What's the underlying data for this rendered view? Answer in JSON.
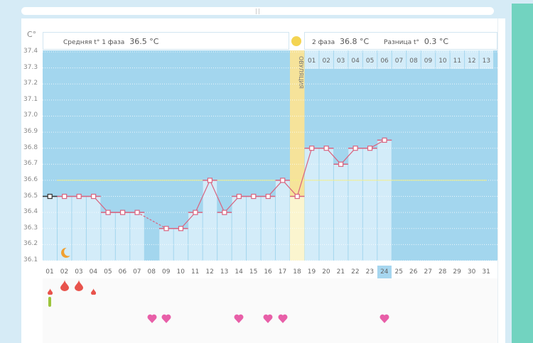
{
  "header": {
    "unit": "C°",
    "phase1_label": "Средняя t° 1 фаза",
    "phase1_value": "36.5 °C",
    "phase2_label": "2 фаза",
    "phase2_value": "36.8 °C",
    "diff_label": "Разница t°",
    "diff_value": "0.3 °C",
    "ovulation_label": "ОВУЛЯЦИЯ"
  },
  "post_ovulation_days": [
    "01",
    "02",
    "03",
    "04",
    "05",
    "06",
    "07",
    "08",
    "09",
    "10",
    "11",
    "12",
    "13"
  ],
  "days": [
    "01",
    "02",
    "03",
    "04",
    "05",
    "06",
    "07",
    "08",
    "09",
    "10",
    "11",
    "12",
    "13",
    "14",
    "15",
    "16",
    "17",
    "18",
    "19",
    "20",
    "21",
    "22",
    "23",
    "24",
    "25",
    "26",
    "27",
    "28",
    "29",
    "30",
    "31"
  ],
  "selected_day": "24",
  "colors": {
    "line": "#d9637f",
    "bg": "#a3d6ee",
    "col": "#d3ecf9",
    "ovulation": "#f8e9a0",
    "cover": "#f0ec8a",
    "heart": "#e85fa8",
    "drop": "#e8534c"
  },
  "chart_data": {
    "type": "line",
    "title": "",
    "ylabel": "C°",
    "ylim": [
      36.1,
      37.4
    ],
    "yticks": [
      "37.4",
      "37.3",
      "37.2",
      "37.1",
      "37.0",
      "36.9",
      "36.8",
      "36.7",
      "36.6",
      "36.5",
      "36.4",
      "36.3",
      "36.2",
      "36.1"
    ],
    "x": [
      1,
      2,
      3,
      4,
      5,
      6,
      7,
      8,
      9,
      10,
      11,
      12,
      13,
      14,
      15,
      16,
      17,
      18,
      19,
      20,
      21,
      22,
      23,
      24
    ],
    "values": [
      36.5,
      36.5,
      36.5,
      36.5,
      36.4,
      36.4,
      36.4,
      null,
      36.3,
      36.3,
      36.4,
      36.6,
      36.4,
      36.5,
      36.5,
      36.5,
      36.6,
      36.5,
      36.8,
      36.8,
      36.7,
      36.8,
      36.8,
      36.85
    ],
    "coverline": 36.6,
    "ovulation_day": 18
  },
  "markers": {
    "bleeding_days": [
      1,
      2,
      3,
      4
    ],
    "bleeding_sizes": [
      0.6,
      1,
      1,
      0.6
    ],
    "green_days": [
      1
    ],
    "heart_days": [
      8,
      9,
      14,
      16,
      17,
      24
    ],
    "moon_day": 2
  }
}
